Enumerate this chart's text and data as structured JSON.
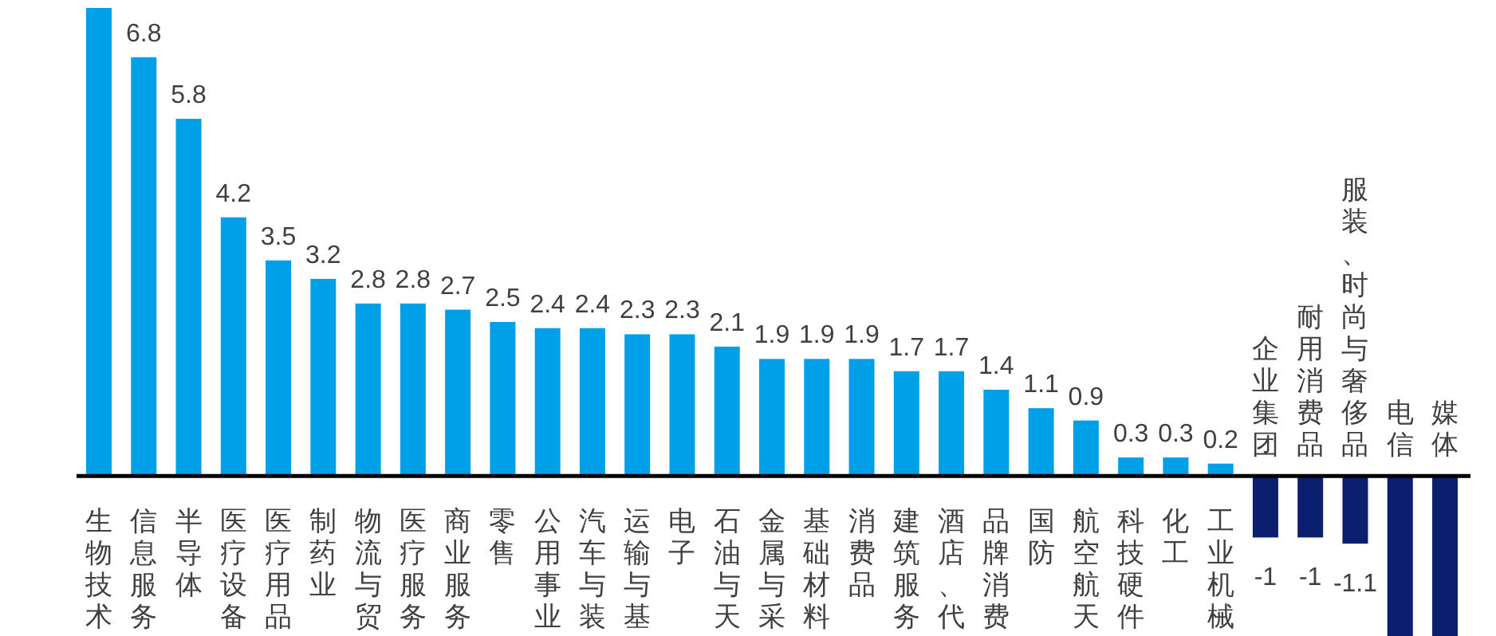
{
  "chart_data": {
    "type": "bar",
    "categories": [
      "生物技术",
      "信息服务",
      "半导体",
      "医疗设备",
      "医疗用品",
      "制药业",
      "物流与贸",
      "医疗服务",
      "商业服务",
      "零售",
      "公用事业",
      "汽车与装",
      "运输与基",
      "电子",
      "石油与天",
      "金属与采",
      "基础材料",
      "消费品",
      "建筑服务",
      "酒店、代",
      "品牌消费",
      "国防",
      "航空航天",
      "科技硬件",
      "化工",
      "工业机械",
      "企业集团",
      "耐用消费品",
      "服装、时尚与奢侈品",
      "电信",
      "媒体"
    ],
    "values": [
      7.6,
      6.8,
      5.8,
      4.2,
      3.5,
      3.2,
      2.8,
      2.8,
      2.7,
      2.5,
      2.4,
      2.4,
      2.3,
      2.3,
      2.1,
      1.9,
      1.9,
      1.9,
      1.7,
      1.7,
      1.4,
      1.1,
      0.9,
      0.3,
      0.3,
      0.2,
      -1,
      -1,
      -1.1,
      -2.6,
      -2.6
    ],
    "value_labels": [
      null,
      "6.8",
      "5.8",
      "4.2",
      "3.5",
      "3.2",
      "2.8",
      "2.8",
      "2.7",
      "2.5",
      "2.4",
      "2.4",
      "2.3",
      "2.3",
      "2.1",
      "1.9",
      "1.9",
      "1.9",
      "1.7",
      "1.7",
      "1.4",
      "1.1",
      "0.9",
      "0.3",
      "0.3",
      "0.2",
      "-1",
      "-1",
      "-1.1",
      null,
      null
    ],
    "colors": [
      "#00a0e9",
      "#00a0e9",
      "#00a0e9",
      "#00a0e9",
      "#00a0e9",
      "#00a0e9",
      "#00a0e9",
      "#00a0e9",
      "#00a0e9",
      "#00a0e9",
      "#00a0e9",
      "#00a0e9",
      "#00a0e9",
      "#00a0e9",
      "#00a0e9",
      "#00a0e9",
      "#00a0e9",
      "#00a0e9",
      "#00a0e9",
      "#00a0e9",
      "#00a0e9",
      "#00a0e9",
      "#00a0e9",
      "#00a0e9",
      "#00a0e9",
      "#00a0e9",
      "#0b1f6e",
      "#0b1f6e",
      "#0b1f6e",
      "#0b1f6e",
      "#0b1f6e"
    ],
    "relative": false
  }
}
